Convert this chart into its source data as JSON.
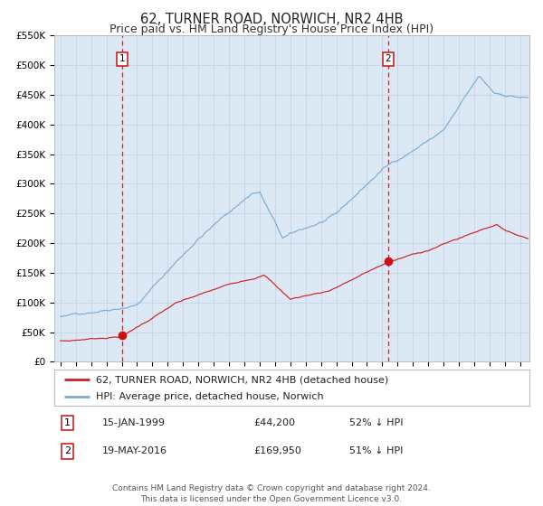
{
  "title": "62, TURNER ROAD, NORWICH, NR2 4HB",
  "subtitle": "Price paid vs. HM Land Registry's House Price Index (HPI)",
  "ylim": [
    0,
    550000
  ],
  "yticks": [
    0,
    50000,
    100000,
    150000,
    200000,
    250000,
    300000,
    350000,
    400000,
    450000,
    500000,
    550000
  ],
  "ytick_labels": [
    "£0",
    "£50K",
    "£100K",
    "£150K",
    "£200K",
    "£250K",
    "£300K",
    "£350K",
    "£400K",
    "£450K",
    "£500K",
    "£550K"
  ],
  "xlim_start": 1994.6,
  "xlim_end": 2025.6,
  "xticks": [
    1995,
    1996,
    1997,
    1998,
    1999,
    2000,
    2001,
    2002,
    2003,
    2004,
    2005,
    2006,
    2007,
    2008,
    2009,
    2010,
    2011,
    2012,
    2013,
    2014,
    2015,
    2016,
    2017,
    2018,
    2019,
    2020,
    2021,
    2022,
    2023,
    2024,
    2025
  ],
  "background_color": "#ffffff",
  "plot_bg_color": "#dce9f5",
  "grid_color": "#c8d8e8",
  "hpi_line_color": "#7aadd4",
  "price_line_color": "#cc2222",
  "vline_color": "#cc2222",
  "point1_x": 1999.04,
  "point1_y": 44200,
  "point2_x": 2016.38,
  "point2_y": 169950,
  "legend1_label": "62, TURNER ROAD, NORWICH, NR2 4HB (detached house)",
  "legend2_label": "HPI: Average price, detached house, Norwich",
  "ann1_date": "15-JAN-1999",
  "ann1_price": "£44,200",
  "ann1_pct": "52% ↓ HPI",
  "ann2_date": "19-MAY-2016",
  "ann2_price": "£169,950",
  "ann2_pct": "51% ↓ HPI",
  "footer": "Contains HM Land Registry data © Crown copyright and database right 2024.\nThis data is licensed under the Open Government Licence v3.0.",
  "title_fontsize": 10.5,
  "subtitle_fontsize": 9,
  "tick_fontsize": 7.5,
  "legend_fontsize": 8,
  "ann_fontsize": 8,
  "footer_fontsize": 6.5
}
